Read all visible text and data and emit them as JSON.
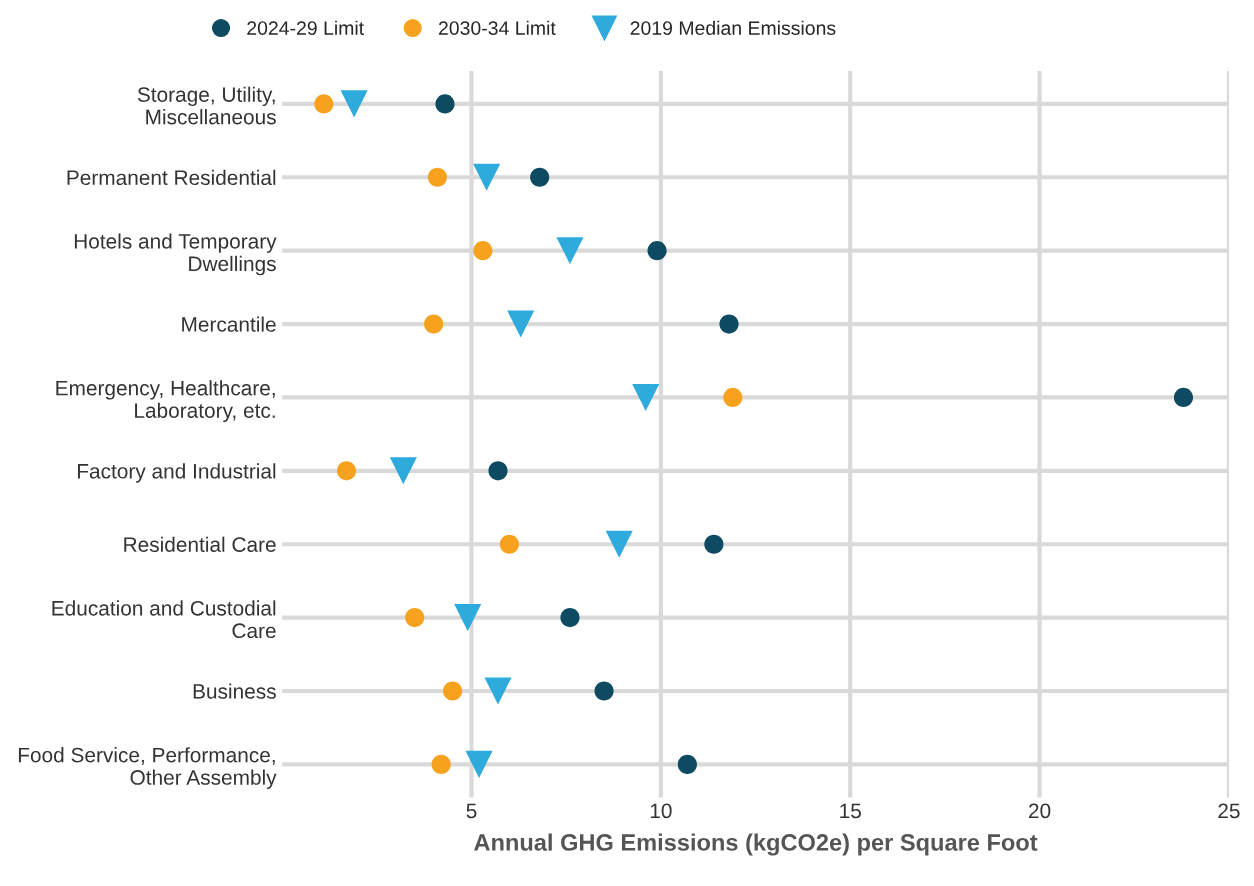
{
  "chart_data": {
    "type": "scatter",
    "categories": [
      "Storage, Utility,\nMiscellaneous",
      "Permanent Residential",
      "Hotels and Temporary\nDwellings",
      "Mercantile",
      "Emergency, Healthcare,\nLaboratory, etc.",
      "Factory and Industrial",
      "Residential Care",
      "Education and Custodial\nCare",
      "Business",
      "Food Service, Performance,\nOther Assembly"
    ],
    "orientation": "horizontal",
    "series": [
      {
        "name": "2024-29 Limit",
        "color": "#0e4a62",
        "marker": "circle",
        "values": [
          4.3,
          6.8,
          9.9,
          11.8,
          23.8,
          5.7,
          11.4,
          7.6,
          8.5,
          10.7
        ]
      },
      {
        "name": "2030-34 Limit",
        "color": "#f6a21e",
        "marker": "circle",
        "values": [
          1.1,
          4.1,
          5.3,
          4.0,
          11.9,
          1.7,
          6.0,
          3.5,
          4.5,
          4.2
        ]
      },
      {
        "name": "2019 Median Emissions",
        "color": "#2eaadc",
        "marker": "triangle",
        "values": [
          1.9,
          5.4,
          7.6,
          6.3,
          9.6,
          3.2,
          8.9,
          4.9,
          5.7,
          5.2
        ]
      }
    ],
    "xlabel": "Annual GHG Emissions (kgCO2e) per Square Foot",
    "xlim": [
      0,
      25
    ],
    "xticks": [
      5,
      10,
      15,
      20,
      25
    ],
    "grid": true,
    "legend": "top"
  }
}
